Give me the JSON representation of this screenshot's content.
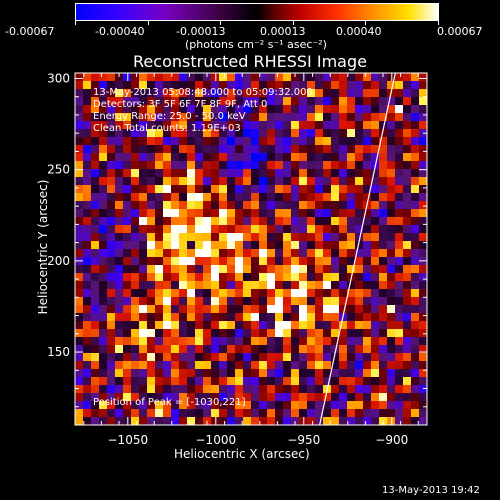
{
  "colorbar": {
    "tick_labels": [
      "-0.00067",
      "-0.00040",
      "-0.00013",
      "0.00013",
      "0.00040",
      "0.00067"
    ],
    "unit_label": "(photons cm⁻² s⁻¹ asec⁻²)",
    "range": [
      -0.00067,
      0.00067
    ]
  },
  "chart_data": {
    "type": "heatmap",
    "title": "Reconstructed RHESSI Image",
    "xlabel": "Heliocentric X (arcsec)",
    "ylabel": "Heliocentric Y (arcsec)",
    "xlim": [
      -1080,
      -880
    ],
    "ylim": [
      110,
      303
    ],
    "x_ticks": [
      -1050,
      -1000,
      -950,
      -900
    ],
    "x_tick_labels": [
      "−1050",
      "−1000",
      "−950",
      "−900"
    ],
    "y_ticks": [
      150,
      200,
      250,
      300
    ],
    "y_tick_labels": [
      "150",
      "200",
      "250",
      "300"
    ],
    "colormap": [
      "#0000ff",
      "#000000",
      "#ff0000",
      "#ffff00",
      "#ffffff"
    ],
    "annotations": [
      "13-May-2013 05:08:48.000 to 05:09:32.000",
      "Detectors: 3F 5F 6F 7F 8F 9F, Att 0",
      "Energy Range: 25.0 - 50.0 keV",
      "Clean     Total counts: 1.19E+03"
    ],
    "peak_label": "Position of Peak = [-1030,221]",
    "limb_line": [
      [
        -941,
        110
      ],
      [
        -898,
        303
      ]
    ]
  },
  "footer": {
    "timestamp": "13-May-2013 19:42"
  }
}
